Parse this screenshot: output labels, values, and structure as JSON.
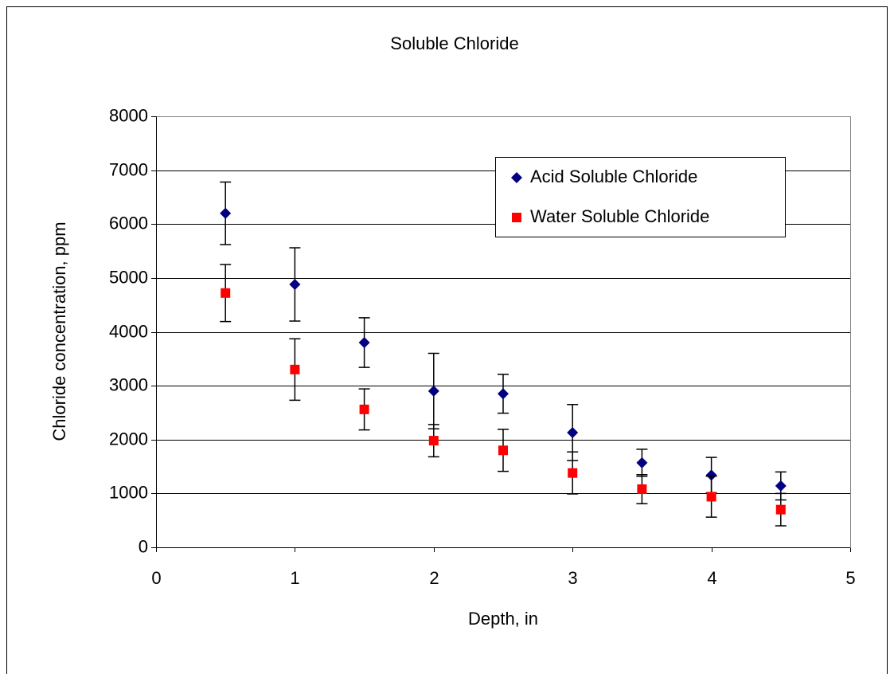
{
  "chart_data": {
    "type": "scatter",
    "title": "Soluble Chloride",
    "x_label": "Depth, in",
    "y_label": "Chloride concentration, ppm",
    "x": [
      0.5,
      1,
      1.5,
      2,
      2.5,
      3,
      3.5,
      4,
      4.5
    ],
    "series": [
      {
        "name": "Acid Soluble Chloride",
        "color": "#000080",
        "marker": "diamond",
        "values": [
          6200,
          4880,
          3800,
          2900,
          2850,
          2130,
          1570,
          1340,
          1140
        ],
        "errors": [
          580,
          680,
          460,
          700,
          360,
          520,
          250,
          330,
          260
        ]
      },
      {
        "name": "Water Soluble Chloride",
        "color": "#ff0000",
        "marker": "square",
        "values": [
          4720,
          3300,
          2560,
          1980,
          1800,
          1380,
          1080,
          940,
          700
        ],
        "errors": [
          530,
          570,
          380,
          300,
          390,
          390,
          270,
          380,
          300
        ]
      }
    ],
    "xlim": [
      0,
      5
    ],
    "xticks": [
      0,
      1,
      2,
      3,
      4,
      5
    ],
    "ylim": [
      0,
      8000
    ],
    "yticks": [
      0,
      1000,
      2000,
      3000,
      4000,
      5000,
      6000,
      7000,
      8000
    ],
    "grid": true,
    "legend_position": "upper right"
  }
}
